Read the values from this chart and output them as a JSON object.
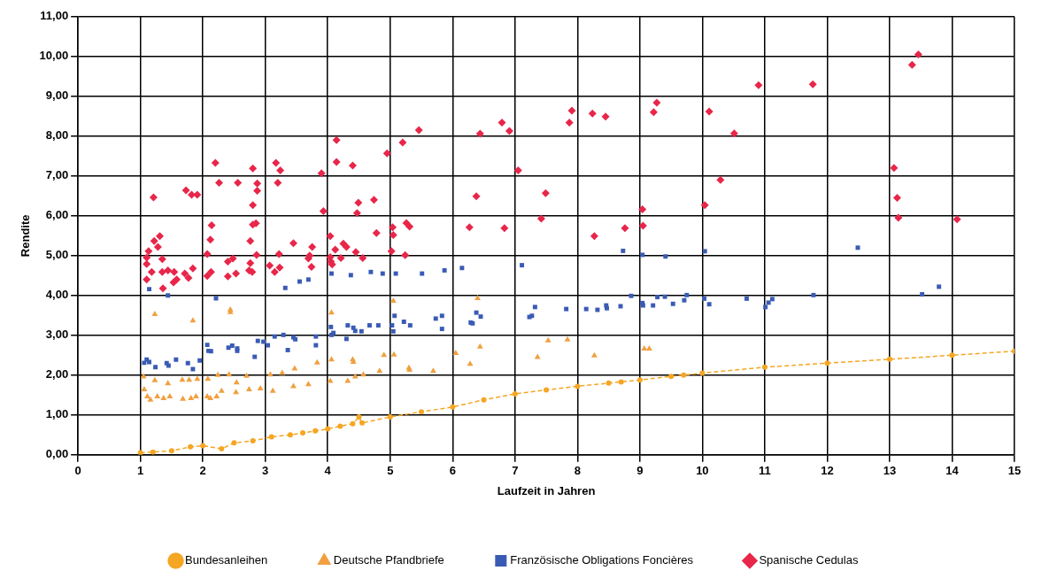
{
  "chart_data": {
    "type": "scatter",
    "xlabel": "Laufzeit in Jahren",
    "ylabel": "Rendite",
    "xlim": [
      0,
      15
    ],
    "xticks": [
      0,
      1,
      2,
      3,
      4,
      5,
      6,
      7,
      8,
      9,
      10,
      11,
      12,
      13,
      14,
      15
    ],
    "ylim": [
      0,
      11
    ],
    "yticks": [
      {
        "value": 0,
        "label": "0,00"
      },
      {
        "value": 1,
        "label": "1,00"
      },
      {
        "value": 2,
        "label": "2,00"
      },
      {
        "value": 3,
        "label": "3,00"
      },
      {
        "value": 4,
        "label": "4,00"
      },
      {
        "value": 5,
        "label": "5,00"
      },
      {
        "value": 6,
        "label": "6,00"
      },
      {
        "value": 7,
        "label": "7,00"
      },
      {
        "value": 8,
        "label": "8,00"
      },
      {
        "value": 9,
        "label": "9,00"
      },
      {
        "value": 10,
        "label": "10,00"
      },
      {
        "value": 11,
        "label": "11,00"
      }
    ],
    "grid": true,
    "legend": "bottom",
    "series": [
      {
        "name": "Bundesanleihen",
        "type": "line",
        "marker": "circle",
        "line_style": "dashed",
        "color": "#f5a623",
        "x": [
          1,
          1.2,
          1.5,
          1.8,
          2,
          2.3,
          2.5,
          2.8,
          3.1,
          3.4,
          3.6,
          3.8,
          4,
          4.2,
          4.4,
          4.5,
          4.55,
          5,
          5.5,
          6,
          6.5,
          7,
          7.5,
          8,
          8.5,
          8.7,
          9,
          9.5,
          9.7,
          10,
          11,
          12,
          13,
          14,
          15
        ],
        "values": [
          0.05,
          0.07,
          0.1,
          0.2,
          0.23,
          0.15,
          0.3,
          0.35,
          0.45,
          0.5,
          0.55,
          0.6,
          0.65,
          0.72,
          0.78,
          0.95,
          0.8,
          0.95,
          1.08,
          1.2,
          1.38,
          1.53,
          1.63,
          1.72,
          1.8,
          1.83,
          1.88,
          1.97,
          2,
          2.05,
          2.2,
          2.3,
          2.4,
          2.5,
          2.6
        ]
      },
      {
        "name": "Deutsche Pfandbriefe",
        "marker": "triangle",
        "color": "#f0a040",
        "x": [
          1.23,
          1.84,
          2.44,
          2.44,
          4.06,
          5.05,
          1.05,
          1.23,
          1.44,
          1.67,
          1.78,
          1.91,
          2.08,
          2.24,
          2.42,
          2.54,
          2.7,
          3.08,
          3.27,
          3.47,
          3.83,
          4.06,
          4.4,
          4.41,
          4.9,
          5.06,
          5.3,
          1.06,
          1.11,
          1.16,
          1.27,
          1.37,
          1.47,
          1.68,
          1.81,
          1.89,
          2.07,
          2.12,
          2.22,
          2.3,
          2.53,
          2.74,
          2.92,
          3.12,
          3.45,
          3.69,
          4.04,
          4.32,
          4.44,
          4.57,
          4.83,
          5.31,
          5.69,
          6.05,
          6.28,
          6.4,
          6.44,
          7.36,
          7.53,
          7.84,
          8.27,
          9.07,
          9.15
        ],
        "values": [
          3.53,
          3.37,
          3.64,
          3.58,
          3.57,
          3.86,
          1.96,
          1.87,
          1.79,
          1.88,
          1.88,
          1.9,
          1.9,
          2,
          2.01,
          1.81,
          1.98,
          2.01,
          2.05,
          2.16,
          2.31,
          2.39,
          2.39,
          2.33,
          2.5,
          2.51,
          2.18,
          1.64,
          1.46,
          1.38,
          1.46,
          1.42,
          1.46,
          1.4,
          1.42,
          1.46,
          1.46,
          1.42,
          1.46,
          1.6,
          1.57,
          1.64,
          1.66,
          1.6,
          1.72,
          1.77,
          1.85,
          1.85,
          1.96,
          2.01,
          2.1,
          2.13,
          2.1,
          2.55,
          2.28,
          3.93,
          2.71,
          2.45,
          2.87,
          2.89,
          2.49,
          2.66,
          2.66
        ]
      },
      {
        "name": "Französische Obligations Foncières",
        "marker": "square",
        "color": "#3a5bb5",
        "x": [
          1.14,
          1.44,
          2.21,
          3.32,
          3.55,
          3.69,
          4.06,
          4.37,
          4.69,
          4.88,
          5.09,
          1.1,
          1.06,
          1.14,
          1.24,
          1.42,
          1.45,
          1.57,
          1.76,
          1.84,
          1.95,
          2.07,
          2.09,
          2.13,
          2.41,
          2.47,
          2.55,
          2.55,
          2.83,
          2.88,
          2.97,
          3.04,
          3.15,
          3.29,
          3.36,
          3.45,
          3.48,
          3.81,
          3.81,
          4.05,
          4.09,
          4.06,
          4.3,
          4.32,
          4.41,
          4.44,
          4.54,
          4.67,
          4.81,
          5.03,
          5.07,
          5.05,
          5.22,
          5.32,
          5.51,
          5.87,
          6.15,
          7.11,
          5.73,
          5.83,
          5.83,
          6.29,
          6.32,
          6.38,
          6.45,
          7.23,
          7.27,
          7.32,
          7.82,
          8.14,
          8.32,
          8.46,
          8.47,
          8.69,
          8.86,
          9.04,
          9.05,
          9.21,
          9.28,
          9.4,
          9.53,
          9.71,
          9.75,
          10.03,
          10.11,
          8.73,
          9.04,
          9.41,
          10.04,
          10.71,
          11.01,
          11.06,
          11.12,
          11.78,
          12.49,
          13.52,
          13.79
        ],
        "values": [
          4.16,
          4,
          3.93,
          4.19,
          4.35,
          4.4,
          4.55,
          4.51,
          4.59,
          4.55,
          4.55,
          2.39,
          2.31,
          2.33,
          2.2,
          2.3,
          2.24,
          2.39,
          2.3,
          2.15,
          2.37,
          2.76,
          2.61,
          2.6,
          2.69,
          2.74,
          2.67,
          2.61,
          2.46,
          2.86,
          2.84,
          2.75,
          2.97,
          3.01,
          2.63,
          2.95,
          2.9,
          2.97,
          2.75,
          3.21,
          3.06,
          3.01,
          2.91,
          3.25,
          3.19,
          3.11,
          3.1,
          3.25,
          3.25,
          3.25,
          3.49,
          3.1,
          3.34,
          3.25,
          4.55,
          4.63,
          4.69,
          4.76,
          3.42,
          3.49,
          3.16,
          3.32,
          3.3,
          3.57,
          3.47,
          3.46,
          3.49,
          3.71,
          3.66,
          3.66,
          3.64,
          3.75,
          3.68,
          3.73,
          3.99,
          3.81,
          3.75,
          3.75,
          3.96,
          3.97,
          3.79,
          3.88,
          4.01,
          3.92,
          3.78,
          5.12,
          5.02,
          4.98,
          5.11,
          3.92,
          3.71,
          3.82,
          3.91,
          4.01,
          5.2,
          4.03,
          4.22
        ]
      },
      {
        "name": "Spanische Cedulas",
        "marker": "diamond",
        "color": "#e8264a",
        "x": [
          1.21,
          1.73,
          1.82,
          1.91,
          2.2,
          2.26,
          2.56,
          2.8,
          2.87,
          2.87,
          2.8,
          2.85,
          2.8,
          3.17,
          3.24,
          3.2,
          3.9,
          3.93,
          4.14,
          4.14,
          4.4,
          4.49,
          4.47,
          4.74,
          4.95,
          5.2,
          2.14,
          2.12,
          2.07,
          2.13,
          2.07,
          2.4,
          2.48,
          2.4,
          2.53,
          2.76,
          2.76,
          2.74,
          2.79,
          2.86,
          3.07,
          3.15,
          3.23,
          3.22,
          3.45,
          3.69,
          3.71,
          3.75,
          3.74,
          1.1,
          1.13,
          1.1,
          1.1,
          1.18,
          1.22,
          1.31,
          1.28,
          1.35,
          1.35,
          1.36,
          1.44,
          1.54,
          1.53,
          1.58,
          1.71,
          1.77,
          1.84,
          4.04,
          4.04,
          4.05,
          4.07,
          4.12,
          4.21,
          4.25,
          4.3,
          4.45,
          4.56,
          4.78,
          5.04,
          5.05,
          5.02,
          5.26,
          5.24,
          5.46,
          6.44,
          6.79,
          6.91,
          7.05,
          7.91,
          7.87,
          8.24,
          8.45,
          9.27,
          9.22,
          10.11,
          10.51,
          10.29,
          10.04,
          9.04,
          9.05,
          8.76,
          8.27,
          7.42,
          7.49,
          6.38,
          6.27,
          6.83,
          5.31,
          10.9,
          11.77,
          13.07,
          13.12,
          13.14,
          13.36,
          13.46,
          14.08
        ],
        "values": [
          6.46,
          6.64,
          6.53,
          6.53,
          7.33,
          6.83,
          6.83,
          7.19,
          6.81,
          6.63,
          6.27,
          5.81,
          5.78,
          7.33,
          7.14,
          6.83,
          7.07,
          6.12,
          7.9,
          7.35,
          7.26,
          6.33,
          6.07,
          6.4,
          7.57,
          7.84,
          5.76,
          5.4,
          5.04,
          4.59,
          4.49,
          4.85,
          4.93,
          4.48,
          4.55,
          5.37,
          4.81,
          4.63,
          4.59,
          5.02,
          4.75,
          4.59,
          4.7,
          5.04,
          5.31,
          4.93,
          5,
          5.22,
          4.72,
          4.95,
          5.11,
          4.79,
          4.4,
          4.59,
          5.37,
          5.49,
          5.22,
          4.91,
          4.59,
          4.18,
          4.63,
          4.59,
          4.33,
          4.4,
          4.55,
          4.44,
          4.68,
          5.49,
          4.96,
          4.85,
          4.78,
          5.15,
          4.94,
          5.3,
          5.22,
          5.09,
          4.94,
          5.57,
          5.71,
          5.52,
          5.11,
          5.82,
          5.01,
          8.15,
          8.06,
          8.34,
          8.13,
          7.14,
          8.64,
          8.34,
          8.57,
          8.49,
          8.84,
          8.6,
          8.62,
          8.07,
          6.9,
          6.27,
          6.16,
          5.75,
          5.69,
          5.49,
          5.93,
          6.57,
          6.49,
          5.71,
          5.69,
          5.73,
          9.28,
          9.3,
          7.2,
          6.45,
          5.95,
          9.79,
          10.05,
          5.91
        ]
      }
    ]
  }
}
